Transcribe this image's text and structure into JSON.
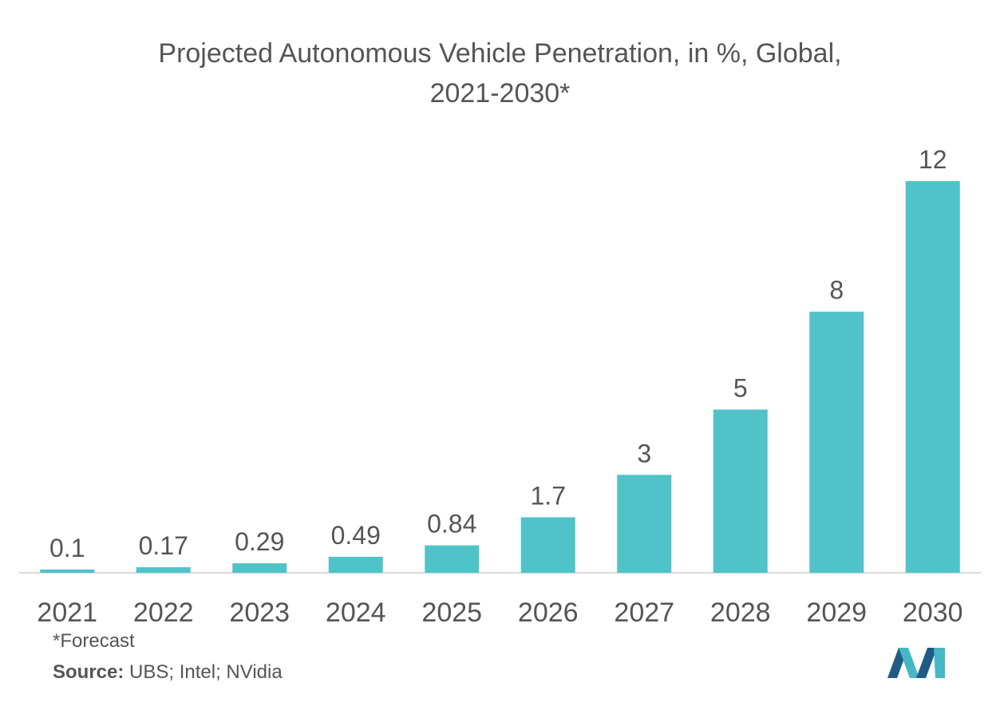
{
  "title_line1": "Projected Autonomous Vehicle Penetration, in %, Global,",
  "title_line2": "2021-2030*",
  "footnote": "*Forecast",
  "source_label": "Source:",
  "source_text": " UBS; Intel; NVidia",
  "colors": {
    "bar": "#4fc3c8",
    "text": "#555555",
    "axis": "#d9d9d9"
  },
  "logo_icon": "mordor-intelligence-logo-icon",
  "chart_data": {
    "type": "bar",
    "title": "Projected Autonomous Vehicle Penetration, in %, Global, 2021-2030*",
    "categories": [
      "2021",
      "2022",
      "2023",
      "2024",
      "2025",
      "2026",
      "2027",
      "2028",
      "2029",
      "2030"
    ],
    "values": [
      0.1,
      0.17,
      0.29,
      0.49,
      0.84,
      1.7,
      3,
      5,
      8,
      12
    ],
    "value_labels": [
      "0.1",
      "0.17",
      "0.29",
      "0.49",
      "0.84",
      "1.7",
      "3",
      "5",
      "8",
      "12"
    ],
    "xlabel": "",
    "ylabel": "",
    "ylim": [
      0,
      12
    ],
    "grid": false,
    "legend": "none"
  }
}
